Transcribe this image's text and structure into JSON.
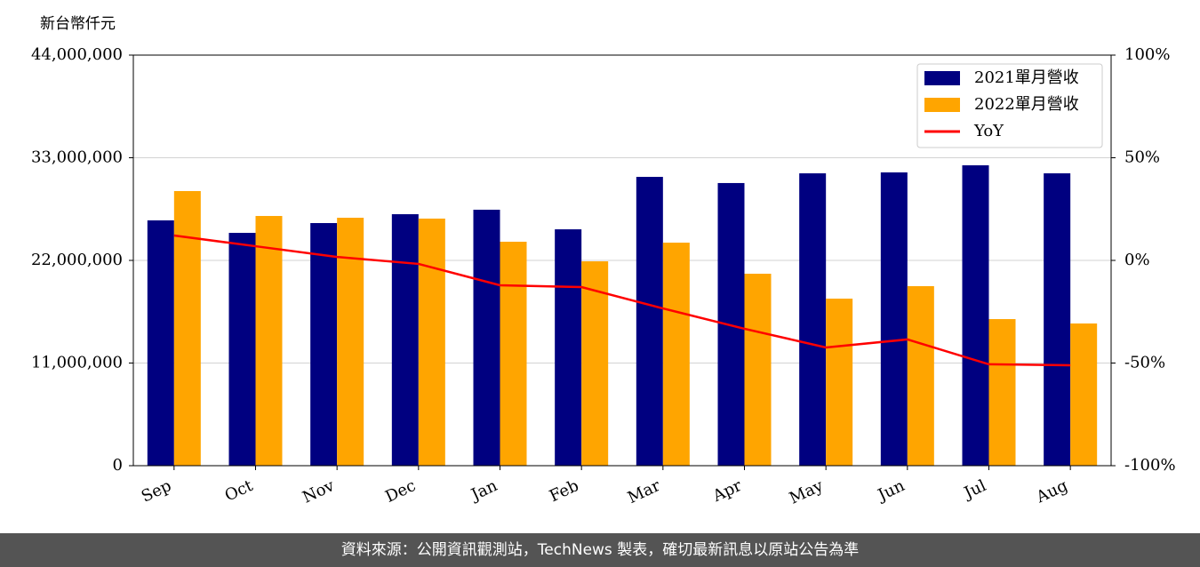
{
  "chart_data": {
    "type": "bar",
    "ylabel": "新台幣仟元",
    "categories": [
      "Sep",
      "Oct",
      "Nov",
      "Dec",
      "Jan",
      "Feb",
      "Mar",
      "Apr",
      "May",
      "Jun",
      "Jul",
      "Aug"
    ],
    "series": [
      {
        "name": "2021單月營收",
        "color": "#000080",
        "values": [
          26290000,
          24950000,
          26000000,
          26950000,
          27430000,
          25330000,
          30950000,
          30290000,
          31330000,
          31430000,
          32190000,
          31330000
        ]
      },
      {
        "name": "2022單月營收",
        "color": "#ffa500",
        "values": [
          29430000,
          26760000,
          26570000,
          26480000,
          24000000,
          21900000,
          23900000,
          20570000,
          17900000,
          19240000,
          15710000,
          15240000
        ]
      },
      {
        "name": "YoY",
        "type": "line",
        "axis": "y2",
        "color": "#ff0000",
        "values": [
          12.1,
          6.9,
          1.7,
          -1.7,
          -12.1,
          -13.0,
          -23.4,
          -33.3,
          -42.4,
          -38.5,
          -50.6,
          -51.1
        ]
      }
    ],
    "ylim": [
      0,
      44000000
    ],
    "yticks": [
      0,
      {
        "value": 11000000,
        "label": "11,000,000"
      },
      {
        "value": 22000000,
        "label": "22,000,000"
      },
      {
        "value": 33000000,
        "label": "33,000,000"
      },
      {
        "value": 44000000,
        "label": "44,000,000"
      }
    ],
    "y2lim": [
      -100,
      100
    ],
    "y2ticks": [
      {
        "value": -100,
        "label": "-100%"
      },
      {
        "value": -50,
        "label": "-50%"
      },
      {
        "value": 0,
        "label": "0%"
      },
      {
        "value": 50,
        "label": "50%"
      },
      {
        "value": 100,
        "label": "100%"
      }
    ],
    "grid": true,
    "legend": "upper right",
    "source": "資料來源：公開資訊觀測站，TechNews 製表，確切最新訊息以原站公告為準"
  }
}
